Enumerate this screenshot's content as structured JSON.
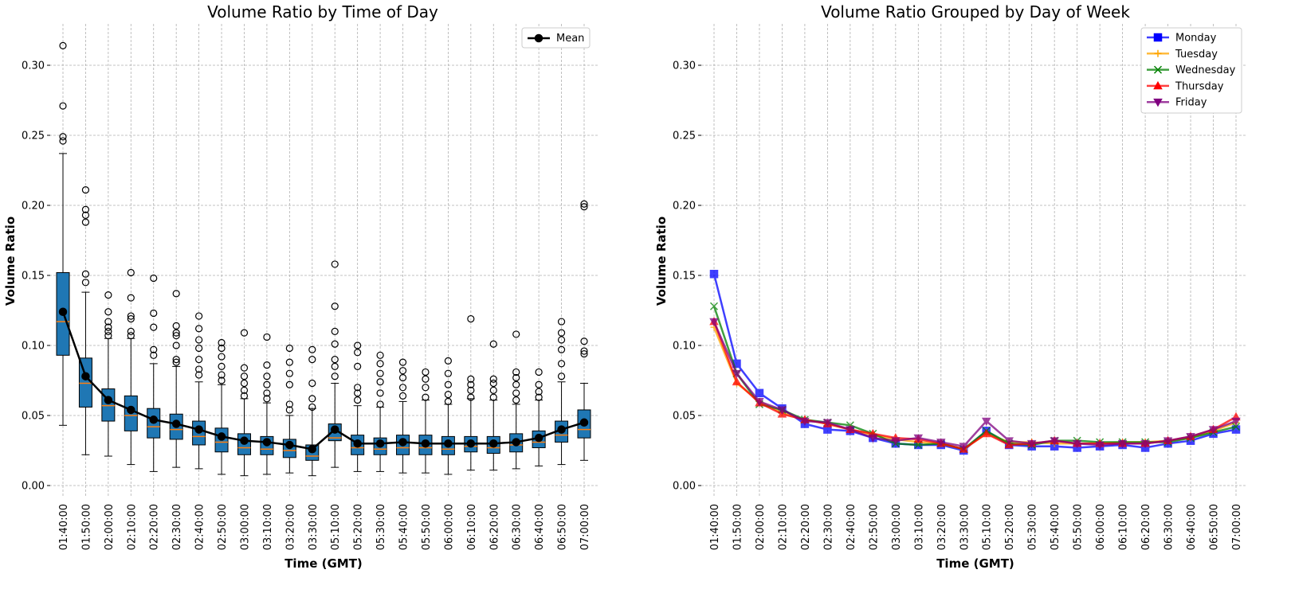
{
  "chart_data": [
    {
      "type": "box",
      "title": "Volume Ratio by Time of Day",
      "xlabel": "Time (GMT)",
      "ylabel": "Volume Ratio",
      "ylim": [
        -0.01,
        0.325
      ],
      "yticks": [
        "0.00",
        "0.05",
        "0.10",
        "0.15",
        "0.20",
        "0.25",
        "0.30"
      ],
      "grid": true,
      "legend_placement": "top-right",
      "categories": [
        "01:40:00",
        "01:50:00",
        "02:00:00",
        "02:10:00",
        "02:20:00",
        "02:30:00",
        "02:40:00",
        "02:50:00",
        "03:00:00",
        "03:10:00",
        "03:20:00",
        "03:30:00",
        "05:10:00",
        "05:20:00",
        "05:30:00",
        "05:40:00",
        "05:50:00",
        "06:00:00",
        "06:10:00",
        "06:20:00",
        "06:30:00",
        "06:40:00",
        "06:50:00",
        "07:00:00"
      ],
      "box_color": "#1f77b4",
      "median_color": "#ff7f0e",
      "boxes": [
        {
          "whislo": 0.043,
          "q1": 0.093,
          "med": 0.117,
          "q3": 0.152,
          "whishi": 0.237,
          "fliers": [
            0.246,
            0.249,
            0.271,
            0.314
          ]
        },
        {
          "whislo": 0.022,
          "q1": 0.056,
          "med": 0.073,
          "q3": 0.091,
          "whishi": 0.138,
          "fliers": [
            0.145,
            0.151,
            0.188,
            0.193,
            0.197,
            0.211
          ]
        },
        {
          "whislo": 0.021,
          "q1": 0.046,
          "med": 0.057,
          "q3": 0.069,
          "whishi": 0.105,
          "fliers": [
            0.107,
            0.11,
            0.113,
            0.117,
            0.124,
            0.136
          ]
        },
        {
          "whislo": 0.015,
          "q1": 0.039,
          "med": 0.05,
          "q3": 0.064,
          "whishi": 0.105,
          "fliers": [
            0.107,
            0.11,
            0.119,
            0.121,
            0.134,
            0.152
          ]
        },
        {
          "whislo": 0.01,
          "q1": 0.034,
          "med": 0.042,
          "q3": 0.055,
          "whishi": 0.087,
          "fliers": [
            0.093,
            0.097,
            0.113,
            0.123,
            0.148
          ]
        },
        {
          "whislo": 0.013,
          "q1": 0.033,
          "med": 0.04,
          "q3": 0.051,
          "whishi": 0.085,
          "fliers": [
            0.088,
            0.09,
            0.1,
            0.107,
            0.109,
            0.114,
            0.137
          ]
        },
        {
          "whislo": 0.012,
          "q1": 0.029,
          "med": 0.035,
          "q3": 0.046,
          "whishi": 0.074,
          "fliers": [
            0.079,
            0.083,
            0.09,
            0.098,
            0.104,
            0.112,
            0.121
          ]
        },
        {
          "whislo": 0.008,
          "q1": 0.024,
          "med": 0.031,
          "q3": 0.041,
          "whishi": 0.072,
          "fliers": [
            0.075,
            0.079,
            0.085,
            0.092,
            0.098,
            0.102
          ]
        },
        {
          "whislo": 0.007,
          "q1": 0.022,
          "med": 0.027,
          "q3": 0.037,
          "whishi": 0.062,
          "fliers": [
            0.064,
            0.068,
            0.073,
            0.078,
            0.084,
            0.109
          ]
        },
        {
          "whislo": 0.008,
          "q1": 0.022,
          "med": 0.026,
          "q3": 0.035,
          "whishi": 0.059,
          "fliers": [
            0.062,
            0.066,
            0.072,
            0.078,
            0.086,
            0.106
          ]
        },
        {
          "whislo": 0.009,
          "q1": 0.02,
          "med": 0.025,
          "q3": 0.033,
          "whishi": 0.05,
          "fliers": [
            0.054,
            0.058,
            0.072,
            0.08,
            0.088,
            0.098
          ]
        },
        {
          "whislo": 0.007,
          "q1": 0.018,
          "med": 0.021,
          "q3": 0.029,
          "whishi": 0.055,
          "fliers": [
            0.056,
            0.062,
            0.073,
            0.09,
            0.097
          ]
        },
        {
          "whislo": 0.013,
          "q1": 0.032,
          "med": 0.034,
          "q3": 0.044,
          "whishi": 0.073,
          "fliers": [
            0.078,
            0.085,
            0.09,
            0.101,
            0.11,
            0.128,
            0.158
          ]
        },
        {
          "whislo": 0.01,
          "q1": 0.022,
          "med": 0.027,
          "q3": 0.036,
          "whishi": 0.057,
          "fliers": [
            0.061,
            0.066,
            0.07,
            0.085,
            0.095,
            0.1
          ]
        },
        {
          "whislo": 0.01,
          "q1": 0.022,
          "med": 0.026,
          "q3": 0.034,
          "whishi": 0.056,
          "fliers": [
            0.058,
            0.066,
            0.074,
            0.08,
            0.087,
            0.093
          ]
        },
        {
          "whislo": 0.009,
          "q1": 0.022,
          "med": 0.027,
          "q3": 0.036,
          "whishi": 0.06,
          "fliers": [
            0.064,
            0.07,
            0.077,
            0.082,
            0.088
          ]
        },
        {
          "whislo": 0.009,
          "q1": 0.022,
          "med": 0.027,
          "q3": 0.036,
          "whishi": 0.061,
          "fliers": [
            0.063,
            0.07,
            0.076,
            0.081
          ]
        },
        {
          "whislo": 0.008,
          "q1": 0.022,
          "med": 0.026,
          "q3": 0.035,
          "whishi": 0.058,
          "fliers": [
            0.06,
            0.065,
            0.072,
            0.08,
            0.089
          ]
        },
        {
          "whislo": 0.011,
          "q1": 0.024,
          "med": 0.028,
          "q3": 0.035,
          "whishi": 0.062,
          "fliers": [
            0.063,
            0.068,
            0.072,
            0.076,
            0.119
          ]
        },
        {
          "whislo": 0.011,
          "q1": 0.023,
          "med": 0.027,
          "q3": 0.035,
          "whishi": 0.061,
          "fliers": [
            0.063,
            0.068,
            0.073,
            0.076,
            0.101
          ]
        },
        {
          "whislo": 0.012,
          "q1": 0.024,
          "med": 0.029,
          "q3": 0.037,
          "whishi": 0.058,
          "fliers": [
            0.061,
            0.066,
            0.072,
            0.077,
            0.081,
            0.108
          ]
        },
        {
          "whislo": 0.014,
          "q1": 0.027,
          "med": 0.031,
          "q3": 0.039,
          "whishi": 0.061,
          "fliers": [
            0.063,
            0.067,
            0.072,
            0.081
          ]
        },
        {
          "whislo": 0.015,
          "q1": 0.031,
          "med": 0.036,
          "q3": 0.046,
          "whishi": 0.074,
          "fliers": [
            0.078,
            0.087,
            0.097,
            0.104,
            0.109,
            0.117
          ]
        },
        {
          "whislo": 0.018,
          "q1": 0.034,
          "med": 0.04,
          "q3": 0.054,
          "whishi": 0.073,
          "fliers": [
            0.094,
            0.096,
            0.103,
            0.199,
            0.201
          ]
        }
      ],
      "series": [
        {
          "name": "Mean",
          "color": "#000000",
          "marker": "circle",
          "values": [
            0.124,
            0.078,
            0.061,
            0.054,
            0.047,
            0.044,
            0.04,
            0.035,
            0.032,
            0.031,
            0.029,
            0.026,
            0.04,
            0.03,
            0.03,
            0.031,
            0.03,
            0.03,
            0.03,
            0.03,
            0.031,
            0.034,
            0.04,
            0.045
          ]
        }
      ]
    },
    {
      "type": "line",
      "title": "Volume Ratio Grouped by Day of Week",
      "xlabel": "Time (GMT)",
      "ylabel": "Volume Ratio",
      "ylim": [
        -0.01,
        0.325
      ],
      "yticks": [
        "0.00",
        "0.05",
        "0.10",
        "0.15",
        "0.20",
        "0.25",
        "0.30"
      ],
      "grid": true,
      "legend_placement": "top-right",
      "categories": [
        "01:40:00",
        "01:50:00",
        "02:00:00",
        "02:10:00",
        "02:20:00",
        "02:30:00",
        "02:40:00",
        "02:50:00",
        "03:00:00",
        "03:10:00",
        "03:20:00",
        "03:30:00",
        "05:10:00",
        "05:20:00",
        "05:30:00",
        "05:40:00",
        "05:50:00",
        "06:00:00",
        "06:10:00",
        "06:20:00",
        "06:30:00",
        "06:40:00",
        "06:50:00",
        "07:00:00"
      ],
      "series": [
        {
          "name": "Monday",
          "color": "#0000ff",
          "marker": "square",
          "values": [
            0.151,
            0.087,
            0.066,
            0.055,
            0.044,
            0.04,
            0.039,
            0.034,
            0.03,
            0.029,
            0.029,
            0.025,
            0.039,
            0.029,
            0.028,
            0.028,
            0.027,
            0.028,
            0.029,
            0.027,
            0.03,
            0.032,
            0.037,
            0.04
          ]
        },
        {
          "name": "Tuesday",
          "color": "#ffa500",
          "marker": "plus",
          "values": [
            0.113,
            0.073,
            0.06,
            0.052,
            0.047,
            0.044,
            0.04,
            0.036,
            0.033,
            0.031,
            0.03,
            0.026,
            0.037,
            0.031,
            0.031,
            0.03,
            0.03,
            0.03,
            0.031,
            0.031,
            0.032,
            0.034,
            0.039,
            0.045
          ]
        },
        {
          "name": "Wednesday",
          "color": "#008000",
          "marker": "x",
          "values": [
            0.128,
            0.08,
            0.058,
            0.054,
            0.047,
            0.045,
            0.043,
            0.037,
            0.03,
            0.029,
            0.03,
            0.026,
            0.039,
            0.03,
            0.029,
            0.032,
            0.032,
            0.031,
            0.031,
            0.031,
            0.031,
            0.034,
            0.038,
            0.042
          ]
        },
        {
          "name": "Thursday",
          "color": "#ff0000",
          "marker": "triangle-up",
          "values": [
            0.117,
            0.074,
            0.059,
            0.051,
            0.047,
            0.044,
            0.04,
            0.037,
            0.034,
            0.033,
            0.03,
            0.026,
            0.037,
            0.029,
            0.03,
            0.032,
            0.03,
            0.03,
            0.03,
            0.03,
            0.032,
            0.035,
            0.04,
            0.049
          ]
        },
        {
          "name": "Friday",
          "color": "#800080",
          "marker": "triangle-down",
          "values": [
            0.117,
            0.08,
            0.06,
            0.054,
            0.046,
            0.045,
            0.04,
            0.034,
            0.032,
            0.034,
            0.031,
            0.028,
            0.046,
            0.032,
            0.03,
            0.032,
            0.03,
            0.029,
            0.03,
            0.03,
            0.032,
            0.035,
            0.04,
            0.046
          ]
        }
      ]
    }
  ]
}
